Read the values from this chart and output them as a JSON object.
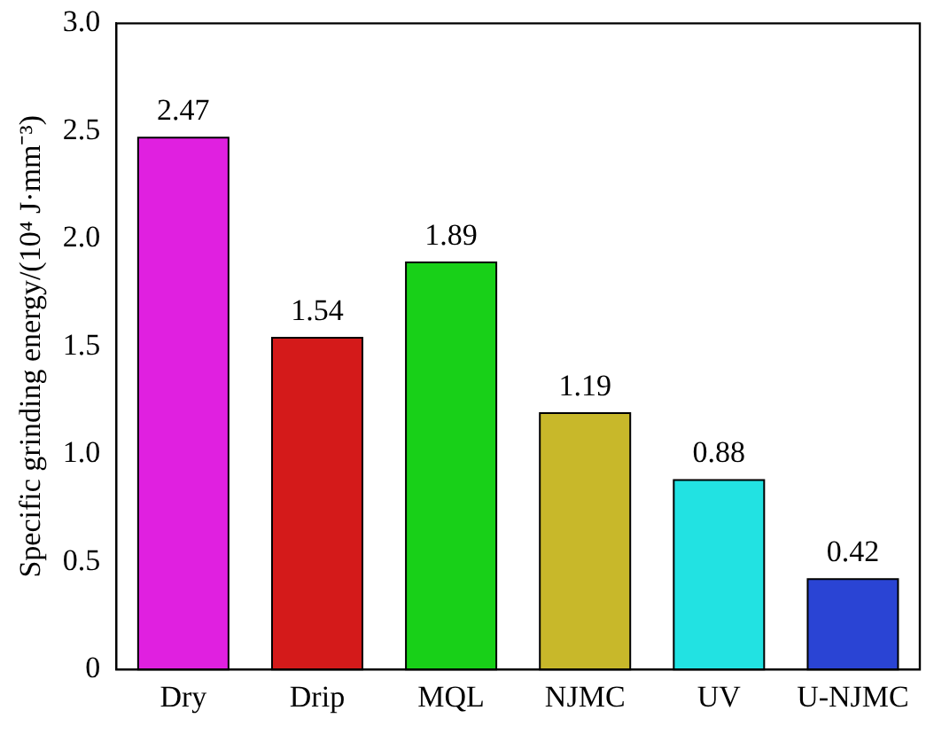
{
  "chart_data": {
    "type": "bar",
    "ylabel": "Specific grinding energy/(10⁴ J·mm⁻³)",
    "categories": [
      "Dry",
      "Drip",
      "MQL",
      "NJMC",
      "UV",
      "U-NJMC"
    ],
    "values": [
      2.47,
      1.54,
      1.89,
      1.19,
      0.88,
      0.42
    ],
    "colors": [
      "#e020e0",
      "#d41a1a",
      "#18d018",
      "#c8b82a",
      "#22e2e2",
      "#2a44d4"
    ],
    "ylim": [
      0,
      3
    ],
    "yticks": [
      0,
      0.5,
      {
        "value": 1,
        "label": "1.0"
      },
      1.5,
      {
        "value": 2,
        "label": "2.0"
      },
      2.5,
      {
        "value": 3,
        "label": "3.0"
      }
    ],
    "data_labels": true,
    "grid": false,
    "legend": false
  }
}
